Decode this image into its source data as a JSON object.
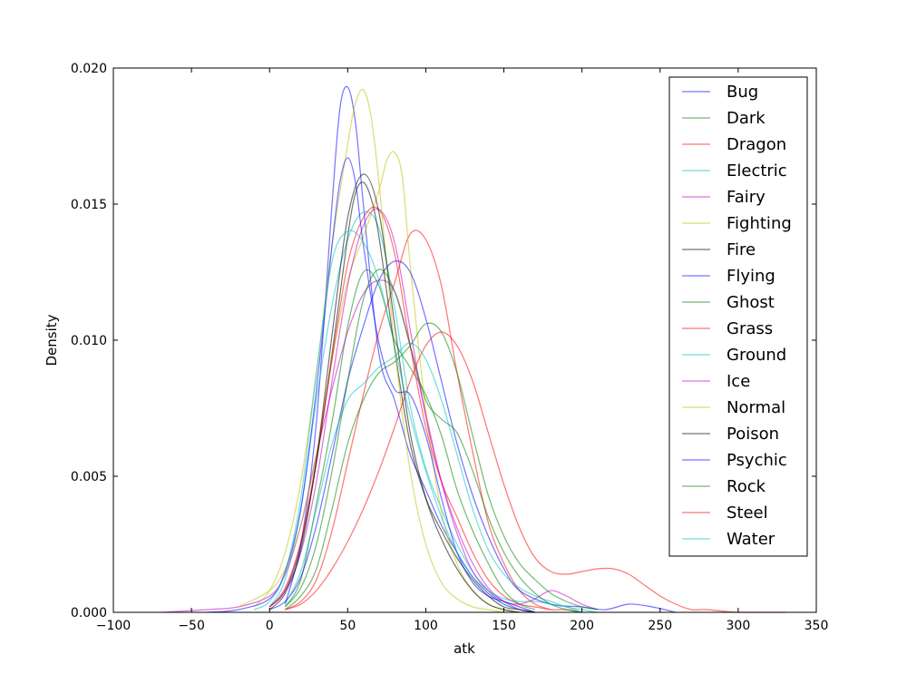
{
  "chart_data": {
    "type": "line",
    "title": "",
    "xlabel": "atk",
    "ylabel": "Density",
    "xlim": [
      -100,
      350
    ],
    "ylim": [
      0,
      0.02
    ],
    "xticks": [
      -100,
      -50,
      0,
      50,
      100,
      150,
      200,
      250,
      300,
      350
    ],
    "yticks": [
      0.0,
      0.005,
      0.01,
      0.015,
      0.02
    ],
    "xtick_labels": [
      "−100",
      "−50",
      "0",
      "50",
      "100",
      "150",
      "200",
      "250",
      "300",
      "350"
    ],
    "ytick_labels": [
      "0.000",
      "0.005",
      "0.010",
      "0.015",
      "0.020"
    ],
    "grid": false,
    "legend_position": "top-right",
    "series": [
      {
        "name": "Bug",
        "color": "#0000ff",
        "x": [
          10,
          20,
          30,
          40,
          45,
          50,
          55,
          60,
          70,
          80,
          90,
          100,
          110,
          120,
          130,
          140,
          150,
          160,
          170
        ],
        "y": [
          0.0003,
          0.0025,
          0.007,
          0.015,
          0.0185,
          0.0193,
          0.018,
          0.015,
          0.0095,
          0.0078,
          0.0058,
          0.0045,
          0.0032,
          0.0022,
          0.0013,
          0.0007,
          0.0003,
          0.0001,
          0.0
        ]
      },
      {
        "name": "Dark",
        "color": "#008000",
        "x": [
          10,
          20,
          30,
          40,
          50,
          60,
          70,
          80,
          90,
          100,
          110,
          120,
          130,
          140,
          150,
          160,
          170
        ],
        "y": [
          0.0002,
          0.0012,
          0.004,
          0.007,
          0.0105,
          0.0125,
          0.012,
          0.01,
          0.009,
          0.008,
          0.0065,
          0.0045,
          0.003,
          0.0018,
          0.0008,
          0.0003,
          0.0001
        ]
      },
      {
        "name": "Dragon",
        "color": "#ff0000",
        "x": [
          10,
          20,
          30,
          40,
          50,
          60,
          70,
          80,
          90,
          100,
          110,
          120,
          130,
          140,
          150,
          160,
          170,
          180
        ],
        "y": [
          0.0001,
          0.0004,
          0.0012,
          0.003,
          0.0055,
          0.008,
          0.0103,
          0.0121,
          0.0139,
          0.0137,
          0.012,
          0.0088,
          0.0059,
          0.0033,
          0.0018,
          0.0008,
          0.0003,
          0.0001
        ]
      },
      {
        "name": "Electric",
        "color": "#00bfbf",
        "x": [
          0,
          10,
          20,
          30,
          40,
          50,
          60,
          70,
          80,
          90,
          100,
          110,
          120,
          130,
          140,
          150,
          160
        ],
        "y": [
          0.0002,
          0.0012,
          0.0038,
          0.0078,
          0.0113,
          0.0137,
          0.0147,
          0.0141,
          0.0112,
          0.0076,
          0.0053,
          0.0038,
          0.0025,
          0.0015,
          0.0008,
          0.0003,
          0.0001
        ]
      },
      {
        "name": "Fairy",
        "color": "#bf00bf",
        "x": [
          -70,
          -40,
          -20,
          0,
          10,
          20,
          30,
          40,
          50,
          60,
          70,
          80,
          90,
          100,
          110,
          120,
          130,
          140,
          150,
          160,
          170,
          180,
          190,
          200,
          210
        ],
        "y": [
          0.0,
          0.0001,
          0.0002,
          0.0006,
          0.0014,
          0.0032,
          0.0058,
          0.0082,
          0.0103,
          0.0117,
          0.0122,
          0.0118,
          0.0098,
          0.0073,
          0.0048,
          0.0029,
          0.0015,
          0.0008,
          0.0004,
          0.0003,
          0.0005,
          0.0008,
          0.0006,
          0.0003,
          0.0001
        ]
      },
      {
        "name": "Fighting",
        "color": "#bfbf00",
        "x": [
          -20,
          0,
          10,
          20,
          30,
          40,
          50,
          60,
          70,
          75,
          80,
          85,
          90,
          100,
          110,
          120,
          130,
          140,
          150,
          160
        ],
        "y": [
          0.0002,
          0.0008,
          0.0016,
          0.0032,
          0.0058,
          0.0093,
          0.0122,
          0.0138,
          0.0155,
          0.0166,
          0.0169,
          0.016,
          0.0128,
          0.0074,
          0.0037,
          0.0018,
          0.0008,
          0.0003,
          0.0001,
          0.0
        ]
      },
      {
        "name": "Fire",
        "color": "#000000",
        "x": [
          0,
          10,
          20,
          30,
          40,
          50,
          55,
          60,
          65,
          70,
          80,
          90,
          100,
          110,
          120,
          130,
          140,
          150,
          160,
          170
        ],
        "y": [
          0.0002,
          0.0008,
          0.0025,
          0.0055,
          0.0095,
          0.0138,
          0.0154,
          0.0158,
          0.0152,
          0.0138,
          0.0097,
          0.0062,
          0.0042,
          0.003,
          0.002,
          0.0012,
          0.0006,
          0.0002,
          0.0001,
          0.0
        ]
      },
      {
        "name": "Flying",
        "color": "#0000ff",
        "x": [
          0,
          10,
          20,
          30,
          40,
          50,
          60,
          70,
          80,
          90,
          100,
          110,
          120,
          130,
          140,
          150,
          160,
          180,
          200,
          215,
          230,
          245,
          260
        ],
        "y": [
          0.0001,
          0.0004,
          0.0013,
          0.0032,
          0.0058,
          0.0085,
          0.0105,
          0.0122,
          0.0129,
          0.0125,
          0.0108,
          0.0085,
          0.0062,
          0.0043,
          0.0028,
          0.0016,
          0.0008,
          0.0003,
          0.0002,
          0.0001,
          0.0003,
          0.0002,
          0.0
        ]
      },
      {
        "name": "Ghost",
        "color": "#008000",
        "x": [
          10,
          20,
          30,
          40,
          50,
          60,
          70,
          80,
          90,
          100,
          110,
          120,
          130,
          140,
          150,
          160,
          170,
          180,
          190,
          200,
          210
        ],
        "y": [
          0.0001,
          0.0006,
          0.0016,
          0.0038,
          0.0062,
          0.0078,
          0.0088,
          0.0092,
          0.0098,
          0.0106,
          0.0103,
          0.0088,
          0.0065,
          0.0043,
          0.0028,
          0.0018,
          0.0012,
          0.0007,
          0.0004,
          0.0002,
          0.0001
        ]
      },
      {
        "name": "Grass",
        "color": "#ff0000",
        "x": [
          0,
          10,
          20,
          30,
          40,
          50,
          60,
          70,
          80,
          90,
          100,
          110,
          120,
          130,
          140,
          150,
          160,
          170,
          180,
          190,
          200
        ],
        "y": [
          0.0002,
          0.0009,
          0.0026,
          0.0056,
          0.0093,
          0.0128,
          0.0145,
          0.0148,
          0.0132,
          0.0098,
          0.0068,
          0.0048,
          0.0035,
          0.0022,
          0.0012,
          0.0006,
          0.0003,
          0.0002,
          0.0001,
          0.0001,
          0.0
        ]
      },
      {
        "name": "Ground",
        "color": "#00bfbf",
        "x": [
          10,
          20,
          30,
          40,
          50,
          60,
          70,
          80,
          90,
          100,
          110,
          120,
          130,
          140,
          150,
          160,
          170,
          180,
          190,
          200,
          210
        ],
        "y": [
          0.0003,
          0.0015,
          0.0038,
          0.0062,
          0.0078,
          0.0084,
          0.009,
          0.0094,
          0.0099,
          0.0093,
          0.0078,
          0.0058,
          0.0038,
          0.0023,
          0.0014,
          0.0009,
          0.0006,
          0.0004,
          0.0002,
          0.0001,
          0.0
        ]
      },
      {
        "name": "Ice",
        "color": "#bf00bf",
        "x": [
          0,
          10,
          20,
          30,
          40,
          50,
          60,
          70,
          80,
          90,
          100,
          110,
          120,
          130,
          140,
          150,
          160
        ],
        "y": [
          0.0002,
          0.0008,
          0.0022,
          0.0048,
          0.0085,
          0.012,
          0.0142,
          0.0148,
          0.0136,
          0.0104,
          0.0072,
          0.0048,
          0.0031,
          0.0018,
          0.0009,
          0.0004,
          0.0001
        ]
      },
      {
        "name": "Normal",
        "color": "#bfbf00",
        "x": [
          -10,
          0,
          10,
          20,
          30,
          40,
          50,
          55,
          60,
          65,
          70,
          80,
          90,
          100,
          110,
          120,
          130,
          140,
          150
        ],
        "y": [
          0.0002,
          0.0008,
          0.0022,
          0.0048,
          0.0088,
          0.0135,
          0.0172,
          0.0187,
          0.0192,
          0.0182,
          0.0158,
          0.0098,
          0.0052,
          0.0025,
          0.0011,
          0.0005,
          0.0002,
          0.0001,
          0.0
        ]
      },
      {
        "name": "Poison",
        "color": "#000000",
        "x": [
          0,
          10,
          20,
          30,
          40,
          50,
          60,
          70,
          80,
          90,
          100,
          110,
          120,
          130,
          140,
          150,
          160
        ],
        "y": [
          0.0001,
          0.0007,
          0.0023,
          0.0056,
          0.0102,
          0.0145,
          0.0161,
          0.0147,
          0.0106,
          0.0066,
          0.0042,
          0.0027,
          0.0016,
          0.0008,
          0.0003,
          0.0001,
          0.0
        ]
      },
      {
        "name": "Psychic",
        "color": "#0000ff",
        "x": [
          -40,
          -20,
          0,
          10,
          20,
          30,
          40,
          45,
          50,
          55,
          60,
          70,
          80,
          90,
          100,
          110,
          120,
          130,
          140,
          150,
          160,
          170
        ],
        "y": [
          0.0,
          0.0001,
          0.0005,
          0.0015,
          0.0038,
          0.0082,
          0.0135,
          0.0158,
          0.0167,
          0.0158,
          0.0135,
          0.0099,
          0.0082,
          0.008,
          0.0065,
          0.0042,
          0.0022,
          0.0011,
          0.0006,
          0.0004,
          0.0002,
          0.0
        ]
      },
      {
        "name": "Rock",
        "color": "#008000",
        "x": [
          10,
          20,
          30,
          40,
          50,
          60,
          70,
          80,
          90,
          100,
          110,
          120,
          130,
          140,
          150,
          160,
          170,
          180,
          190,
          200
        ],
        "y": [
          0.0002,
          0.0009,
          0.0025,
          0.0052,
          0.0085,
          0.0115,
          0.0126,
          0.0118,
          0.0098,
          0.0078,
          0.0071,
          0.0066,
          0.0052,
          0.0035,
          0.0022,
          0.0013,
          0.0007,
          0.0003,
          0.0001,
          0.0
        ]
      },
      {
        "name": "Steel",
        "color": "#ff0000",
        "x": [
          10,
          20,
          30,
          40,
          50,
          60,
          70,
          80,
          90,
          100,
          110,
          120,
          130,
          140,
          150,
          160,
          170,
          180,
          190,
          200,
          210,
          220,
          230,
          240,
          250,
          260,
          270,
          280,
          300,
          330
        ],
        "y": [
          0.0001,
          0.0003,
          0.0008,
          0.0016,
          0.0026,
          0.0038,
          0.0052,
          0.0068,
          0.0085,
          0.0098,
          0.0103,
          0.0098,
          0.0085,
          0.0066,
          0.0047,
          0.0031,
          0.002,
          0.0015,
          0.0014,
          0.0015,
          0.0016,
          0.0016,
          0.0014,
          0.001,
          0.0006,
          0.0003,
          0.0001,
          0.0001,
          0.0,
          0.0
        ]
      },
      {
        "name": "Water",
        "color": "#00bfbf",
        "x": [
          -10,
          0,
          10,
          20,
          30,
          40,
          50,
          60,
          70,
          80,
          90,
          100,
          110,
          120,
          130,
          140,
          150,
          160,
          170,
          180,
          190,
          200
        ],
        "y": [
          0.0001,
          0.0004,
          0.0015,
          0.0042,
          0.0088,
          0.0129,
          0.014,
          0.0136,
          0.0122,
          0.0098,
          0.0072,
          0.0052,
          0.0035,
          0.0022,
          0.0013,
          0.0008,
          0.0005,
          0.0004,
          0.0004,
          0.0003,
          0.0002,
          0.0
        ]
      }
    ]
  }
}
